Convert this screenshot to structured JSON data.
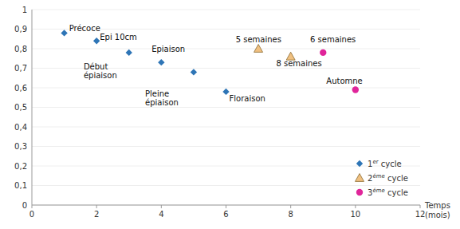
{
  "chart_data": {
    "type": "scatter",
    "x_label": "Temps\n(mois)",
    "series": [
      {
        "name": "1er cycle",
        "color": "#2E75B6",
        "marker": "diamond",
        "x": [
          1,
          2,
          3,
          4,
          5,
          6
        ],
        "values": [
          0.88,
          0.84,
          0.78,
          0.73,
          0.68,
          0.58
        ]
      },
      {
        "name": "2éme cycle",
        "color": "#F0C080",
        "marker": "triangle",
        "x": [
          7,
          8
        ],
        "values": [
          0.8,
          0.76
        ]
      },
      {
        "name": "3éme cycle",
        "color": "#E0259A",
        "marker": "circle",
        "x": [
          9,
          10
        ],
        "values": [
          0.78,
          0.59
        ]
      }
    ],
    "annotations": [
      {
        "text": "Précoce",
        "x": 1.15,
        "y": 0.905
      },
      {
        "text": "Epi 10cm",
        "x": 2.1,
        "y": 0.86
      },
      {
        "text": "Epiaison",
        "x": 3.7,
        "y": 0.8
      },
      {
        "text": "Début\népiaison",
        "x": 1.6,
        "y": 0.685
      },
      {
        "text": "Pleine\népiaison",
        "x": 3.5,
        "y": 0.545
      },
      {
        "text": "Floraison",
        "x": 6.1,
        "y": 0.545
      },
      {
        "text": "5 semaines",
        "x": 6.3,
        "y": 0.845
      },
      {
        "text": "8 semaines",
        "x": 7.55,
        "y": 0.725
      },
      {
        "text": "6 semaines",
        "x": 8.6,
        "y": 0.845
      },
      {
        "text": "Automne",
        "x": 9.1,
        "y": 0.635
      }
    ],
    "xlim": [
      0,
      12
    ],
    "ylim": [
      0,
      1.0
    ],
    "xticks": [
      0,
      2,
      4,
      6,
      8,
      10,
      12
    ],
    "yticks": [
      0,
      {
        "value": 0.1,
        "label": "0,1"
      },
      {
        "value": 0.2,
        "label": "0,2"
      },
      {
        "value": 0.3,
        "label": "0,3"
      },
      {
        "value": 0.4,
        "label": "0,4"
      },
      {
        "value": 0.5,
        "label": "0,5"
      },
      {
        "value": 0.6,
        "label": "0,6"
      },
      {
        "value": 0.7,
        "label": "0,7"
      },
      {
        "value": 0.8,
        "label": "0,8"
      },
      {
        "value": 0.9,
        "label": "0,9"
      },
      1
    ],
    "legend": "lower right"
  }
}
